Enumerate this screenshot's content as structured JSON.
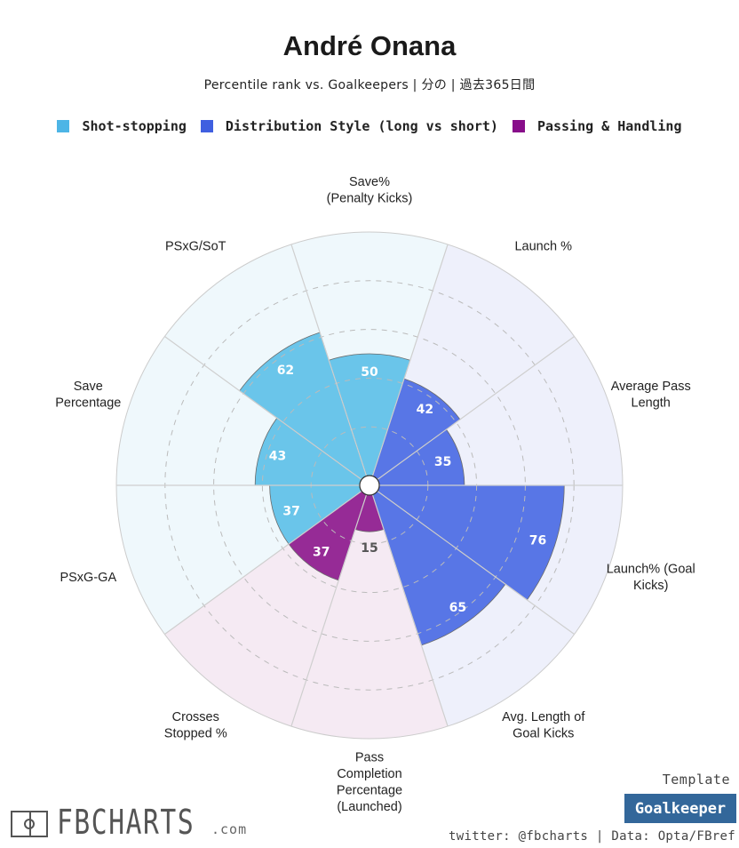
{
  "header": {
    "title": "André Onana",
    "subtitle": "Percentile rank vs. Goalkeepers | 分の | 過去365日間"
  },
  "legend": [
    {
      "label": "Shot-stopping",
      "color": "#4db5e6"
    },
    {
      "label": "Distribution Style (long vs short)",
      "color": "#3f5fe0"
    },
    {
      "label": "Passing & Handling",
      "color": "#880e8a"
    }
  ],
  "chart_data": {
    "type": "polar-bar",
    "rmax": 100,
    "ring_levels": [
      20,
      40,
      60,
      80
    ],
    "grid": "dashed rings",
    "legend_position": "top",
    "categories": [
      {
        "label": [
          "Save%",
          "(Penalty Kicks)"
        ],
        "value": 50,
        "group": "Shot-stopping"
      },
      {
        "label": [
          "Launch %"
        ],
        "value": 42,
        "group": "Distribution Style (long vs short)"
      },
      {
        "label": [
          "Average Pass",
          "Length"
        ],
        "value": 35,
        "group": "Distribution Style (long vs short)"
      },
      {
        "label": [
          "Launch% (Goal",
          "Kicks)"
        ],
        "value": 76,
        "group": "Distribution Style (long vs short)"
      },
      {
        "label": [
          "Avg. Length of",
          "Goal Kicks"
        ],
        "value": 65,
        "group": "Distribution Style (long vs short)"
      },
      {
        "label": [
          "Pass",
          "Completion",
          "Percentage",
          "(Launched)"
        ],
        "value": 15,
        "group": "Passing & Handling"
      },
      {
        "label": [
          "Crosses",
          "Stopped %"
        ],
        "value": 37,
        "group": "Passing & Handling"
      },
      {
        "label": [
          "PSxG-GA"
        ],
        "value": 37,
        "group": "Shot-stopping"
      },
      {
        "label": [
          "Save",
          "Percentage"
        ],
        "value": 43,
        "group": "Shot-stopping"
      },
      {
        "label": [
          "PSxG/SoT"
        ],
        "value": 62,
        "group": "Shot-stopping"
      }
    ],
    "group_colors": {
      "Shot-stopping": {
        "bar": "#6ac5ea",
        "bg": "#eff8fc",
        "text": "#ffffff"
      },
      "Distribution Style (long vs short)": {
        "bar": "#5876e6",
        "bg": "#eef0fb",
        "text": "#ffffff"
      },
      "Passing & Handling": {
        "bar": "#962b96",
        "bg": "#f5eaf3",
        "text": "#ffffff"
      }
    },
    "low_value_text_color": "#555555"
  },
  "branding": {
    "logo_text": "FBCHARTS",
    "logo_suffix": ".com",
    "template_label": "Template",
    "template_name": "Goalkeeper",
    "credit": "twitter: @fbcharts | Data: Opta/FBref"
  }
}
